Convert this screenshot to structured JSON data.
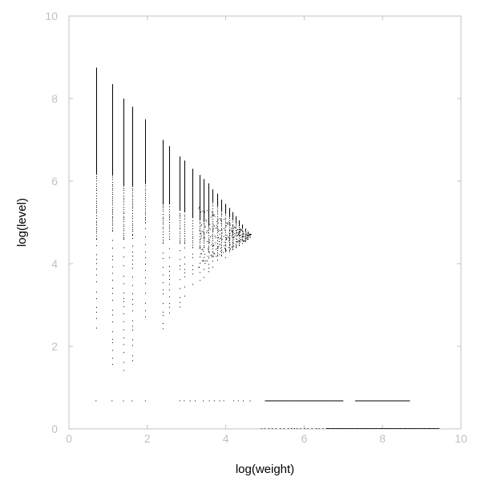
{
  "chart_data": {
    "type": "scatter",
    "title": "",
    "xlabel": "log(weight)",
    "ylabel": "log(level)",
    "xlim": [
      0,
      10
    ],
    "ylim": [
      0,
      10
    ],
    "xticks": [
      "0",
      "2",
      "4",
      "6",
      "8",
      "10"
    ],
    "yticks": [
      "0",
      "2",
      "4",
      "6",
      "8",
      "10"
    ],
    "grid": false,
    "legend": "none",
    "colors": {
      "points": "#000000",
      "axis": "#b8c4c4",
      "tick_labels": "#b8c4c4"
    },
    "columns": [
      {
        "x": 0.69,
        "y_top": 8.75,
        "y_dense_low": 4.6,
        "y_sparse_low": 2.3
      },
      {
        "x": 1.1,
        "y_top": 8.35,
        "y_dense_low": 4.8,
        "y_sparse_low": 1.4
      },
      {
        "x": 1.39,
        "y_top": 8.0,
        "y_dense_low": 4.6,
        "y_sparse_low": 1.4
      },
      {
        "x": 1.61,
        "y_top": 7.8,
        "y_dense_low": 4.7,
        "y_sparse_low": 1.6
      },
      {
        "x": 1.95,
        "y_top": 7.5,
        "y_dense_low": 5.0,
        "y_sparse_low": 2.7
      },
      {
        "x": 2.4,
        "y_top": 7.0,
        "y_dense_low": 4.5,
        "y_sparse_low": 2.4
      },
      {
        "x": 2.56,
        "y_top": 6.85,
        "y_dense_low": 4.6,
        "y_sparse_low": 2.8
      },
      {
        "x": 2.83,
        "y_top": 6.6,
        "y_dense_low": 4.5,
        "y_sparse_low": 2.9
      },
      {
        "x": 2.94,
        "y_top": 6.5,
        "y_dense_low": 4.5,
        "y_sparse_low": 3.2
      },
      {
        "x": 3.14,
        "y_top": 6.3,
        "y_dense_low": 4.4,
        "y_sparse_low": 3.4
      },
      {
        "x": 3.33,
        "y_top": 6.15,
        "y_dense_low": 4.4,
        "y_sparse_low": 3.5
      },
      {
        "x": 3.43,
        "y_top": 6.05,
        "y_dense_low": 4.4,
        "y_sparse_low": 3.6
      },
      {
        "x": 3.56,
        "y_top": 5.95,
        "y_dense_low": 4.3,
        "y_sparse_low": 3.8
      },
      {
        "x": 3.66,
        "y_top": 5.8,
        "y_dense_low": 4.3,
        "y_sparse_low": 3.9
      },
      {
        "x": 3.78,
        "y_top": 5.7,
        "y_dense_low": 4.2,
        "y_sparse_low": 4.0
      },
      {
        "x": 3.89,
        "y_top": 5.55,
        "y_dense_low": 4.2,
        "y_sparse_low": 4.05
      },
      {
        "x": 3.99,
        "y_top": 5.45,
        "y_dense_low": 4.3,
        "y_sparse_low": 4.15
      },
      {
        "x": 4.09,
        "y_top": 5.35,
        "y_dense_low": 4.3,
        "y_sparse_low": 4.2
      },
      {
        "x": 4.17,
        "y_top": 5.25,
        "y_dense_low": 4.35,
        "y_sparse_low": 4.3
      },
      {
        "x": 4.26,
        "y_top": 5.15,
        "y_dense_low": 4.4,
        "y_sparse_low": 4.35
      },
      {
        "x": 4.34,
        "y_top": 5.05,
        "y_dense_low": 4.45,
        "y_sparse_low": 4.4
      },
      {
        "x": 4.41,
        "y_top": 4.95,
        "y_dense_low": 4.5,
        "y_sparse_low": 4.45
      },
      {
        "x": 4.49,
        "y_top": 4.85,
        "y_dense_low": 4.55,
        "y_sparse_low": 4.5
      },
      {
        "x": 4.56,
        "y_top": 4.78,
        "y_dense_low": 4.6,
        "y_sparse_low": 4.58
      },
      {
        "x": 4.62,
        "y_top": 4.72,
        "y_dense_low": 4.65,
        "y_sparse_low": 4.63
      }
    ],
    "row_y07": {
      "y": 0.69,
      "x_points": [
        0.69,
        1.1,
        1.39,
        1.61,
        1.95,
        2.83,
        2.94,
        3.09,
        3.22,
        3.43,
        3.58,
        3.71,
        3.85,
        3.95,
        4.2,
        4.32,
        4.45,
        4.62
      ],
      "dense_segments": [
        [
          5.0,
          7.0
        ],
        [
          7.3,
          8.7
        ]
      ]
    },
    "row_y0": {
      "y": 0.0,
      "dense_segments": [
        [
          4.9,
          9.45
        ]
      ]
    }
  }
}
